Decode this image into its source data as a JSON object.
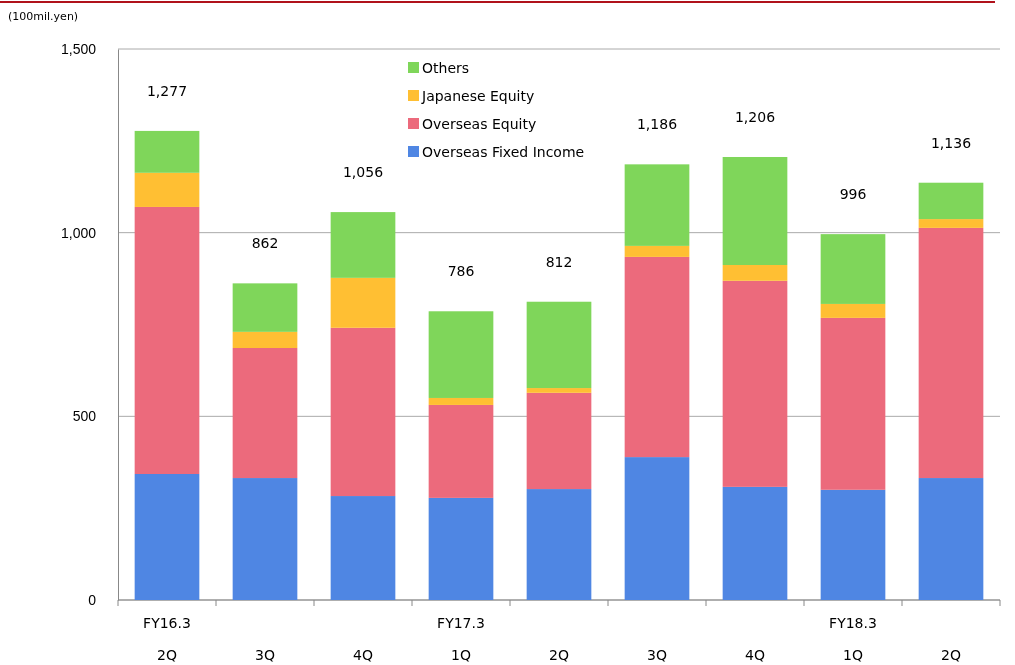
{
  "chart_data": {
    "type": "bar",
    "stacked": true,
    "ylabel": "(100mil.yen)",
    "categories": [
      "FY16.3\n2Q",
      "3Q",
      "4Q",
      "FY17.3\n1Q",
      "2Q",
      "3Q",
      "4Q",
      "FY18.3\n1Q",
      "2Q"
    ],
    "series": [
      {
        "name": "Overseas Fixed Income",
        "color": "#4f86e3",
        "values": [
          343,
          332,
          283,
          278,
          302,
          389,
          308,
          300,
          332
        ]
      },
      {
        "name": "Overseas Equity",
        "color": "#ec6a7c",
        "values": [
          727,
          354,
          458,
          253,
          262,
          545,
          561,
          468,
          681
        ]
      },
      {
        "name": "Japanese Equity",
        "color": "#ffbf33",
        "values": [
          93,
          44,
          136,
          19,
          13,
          30,
          43,
          38,
          24
        ]
      },
      {
        "name": "Others",
        "color": "#7fd65a",
        "values": [
          114,
          132,
          179,
          236,
          235,
          222,
          294,
          190,
          99
        ]
      }
    ],
    "totals": [
      "1,277",
      "862",
      "1,056",
      "786",
      "812",
      "1,186",
      "1,206",
      "996",
      "1,136"
    ],
    "ylim": [
      0,
      1500
    ],
    "yticks": [
      0,
      {
        "value": 500,
        "label": "500"
      },
      {
        "value": 1000,
        "label": "1,000"
      },
      {
        "value": 1500,
        "label": "1,500"
      }
    ],
    "grid": "y",
    "legend": "top"
  }
}
